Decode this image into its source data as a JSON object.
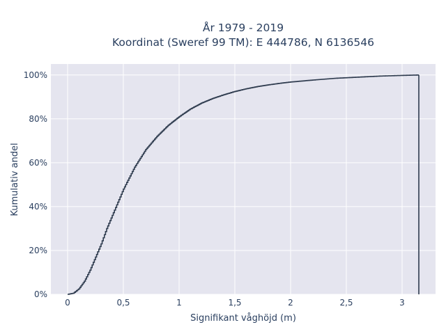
{
  "chart_data": {
    "type": "line",
    "title": "År 1979 - 2019",
    "subtitle": "Koordinat (Sweref 99 TM): E 444786, N 6136546",
    "xlabel": "Signifikant våghöjd (m)",
    "ylabel": "Kumulativ andel",
    "xlim": [
      -0.15,
      3.3
    ],
    "ylim": [
      0,
      1.05
    ],
    "x_ticks": [
      0,
      0.5,
      1,
      1.5,
      2,
      2.5,
      3
    ],
    "x_tick_labels": [
      "0",
      "0,5",
      "1",
      "1,5",
      "2",
      "2,5",
      "3"
    ],
    "y_ticks": [
      0,
      0.2,
      0.4,
      0.6,
      0.8,
      1.0
    ],
    "y_tick_labels": [
      "0%",
      "20%",
      "40%",
      "60%",
      "80%",
      "100%"
    ],
    "grid": true,
    "legend": "none",
    "series": [
      {
        "x": [
          0.0,
          0.05,
          0.1,
          0.15,
          0.2,
          0.25,
          0.3,
          0.35,
          0.4,
          0.45,
          0.5,
          0.55,
          0.6,
          0.65,
          0.7,
          0.75,
          0.8,
          0.85,
          0.9,
          0.95,
          1.0,
          1.1,
          1.2,
          1.3,
          1.4,
          1.5,
          1.6,
          1.7,
          1.8,
          1.9,
          2.0,
          2.2,
          2.4,
          2.6,
          2.8,
          3.0,
          3.15,
          3.15
        ],
        "y": [
          0.0,
          0.005,
          0.025,
          0.06,
          0.11,
          0.17,
          0.23,
          0.3,
          0.36,
          0.42,
          0.48,
          0.53,
          0.58,
          0.62,
          0.66,
          0.69,
          0.72,
          0.745,
          0.77,
          0.79,
          0.81,
          0.845,
          0.872,
          0.893,
          0.91,
          0.925,
          0.937,
          0.947,
          0.955,
          0.962,
          0.968,
          0.977,
          0.985,
          0.99,
          0.995,
          0.998,
          1.0,
          0.0
        ]
      }
    ],
    "colors": {
      "line": "#2e3b4e",
      "plot_background": "#e5e5ef",
      "grid": "#ffffff",
      "text": "#2a3f5f"
    }
  }
}
